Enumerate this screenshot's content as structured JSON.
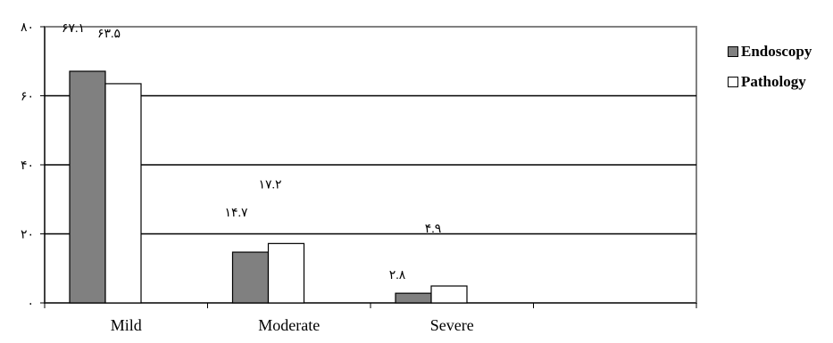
{
  "colors": {
    "endoscopy": "#808080",
    "pathology": "#ffffff",
    "plot_border": "#808080",
    "grid": "#000000"
  },
  "chart_data": {
    "type": "bar",
    "title": "",
    "xlabel": "",
    "ylabel": "",
    "categories": [
      "Mild",
      "Moderate",
      "Severe",
      ""
    ],
    "series": [
      {
        "name": "Endoscopy",
        "values": [
          67.1,
          14.7,
          2.8,
          null
        ],
        "labels": [
          "۶۷.۱",
          "۱۴.۷",
          "۲.۸",
          ""
        ]
      },
      {
        "name": "Pathology",
        "values": [
          63.5,
          17.2,
          4.9,
          null
        ],
        "labels": [
          "۶۳.۵",
          "۱۷.۲",
          "۴.۹",
          ""
        ]
      }
    ],
    "ylim": [
      0,
      80
    ],
    "yticks": [
      0,
      20,
      40,
      60,
      80
    ],
    "ytick_labels": [
      "۰",
      "۲۰",
      "۴۰",
      "۶۰",
      "۸۰"
    ],
    "grid": true,
    "legend": {
      "position": "right",
      "entries": [
        "Endoscopy",
        "Pathology"
      ]
    }
  }
}
